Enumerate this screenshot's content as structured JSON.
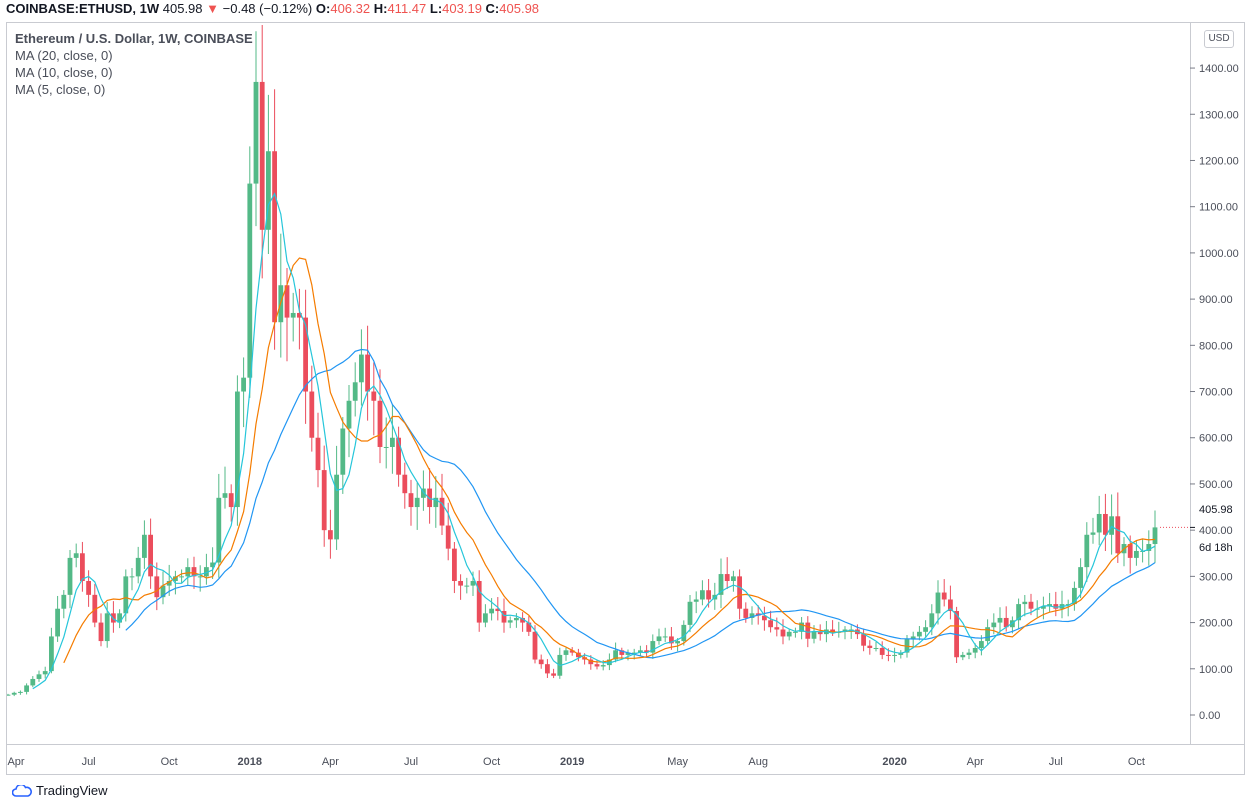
{
  "header": {
    "symbol": "COINBASE:ETHUSD, 1W",
    "last": "405.98",
    "change": "−0.48 (−0.12%)",
    "o_label": "O:",
    "o": "406.32",
    "h_label": "H:",
    "h": "411.47",
    "l_label": "L:",
    "l": "403.19",
    "c_label": "C:",
    "c": "405.98"
  },
  "legend": {
    "title": "Ethereum / U.S. Dollar, 1W, COINBASE",
    "ma20": "MA (20, close, 0)",
    "ma10": "MA (10, close, 0)",
    "ma5": "MA (5, close, 0)"
  },
  "currency_button": "USD",
  "price_label": "405.98",
  "countdown": "6d 18h",
  "brand": "TradingView",
  "colors": {
    "up": "#53b987",
    "down": "#eb4d5c",
    "ma20": "#2196f3",
    "ma10": "#f57c00",
    "ma5": "#26c6da"
  },
  "chart_data": {
    "type": "candlestick",
    "interval": "1W",
    "ylim": [
      -50,
      1450
    ],
    "yticks": [
      "0.00",
      "100.00",
      "200.00",
      "300.00",
      "400.00",
      "500.00",
      "600.00",
      "700.00",
      "800.00",
      "900.00",
      "1000.00",
      "1100.00",
      "1200.00",
      "1300.00",
      "1400.00"
    ],
    "xticks": [
      {
        "label": "Apr",
        "week": -1
      },
      {
        "label": "Jul",
        "week": 13
      },
      {
        "label": "Oct",
        "week": 26
      },
      {
        "label": "2018",
        "week": 39
      },
      {
        "label": "Apr",
        "week": 52
      },
      {
        "label": "Jul",
        "week": 65
      },
      {
        "label": "Oct",
        "week": 78
      },
      {
        "label": "2019",
        "week": 91
      },
      {
        "label": "May",
        "week": 108
      },
      {
        "label": "Aug",
        "week": 121
      },
      {
        "label": "2020",
        "week": 143
      },
      {
        "label": "Apr",
        "week": 156
      },
      {
        "label": "Jul",
        "week": 169
      },
      {
        "label": "Oct",
        "week": 182
      }
    ],
    "first_open": 44,
    "closes": [
      44,
      48,
      50,
      64,
      78,
      88,
      95,
      170,
      230,
      260,
      340,
      350,
      290,
      260,
      200,
      160,
      220,
      200,
      220,
      300,
      300,
      340,
      390,
      300,
      255,
      280,
      290,
      300,
      300,
      320,
      300,
      300,
      320,
      330,
      470,
      480,
      450,
      700,
      730,
      1150,
      1370,
      1050,
      1220,
      850,
      930,
      860,
      870,
      860,
      700,
      600,
      530,
      400,
      380,
      520,
      620,
      680,
      720,
      780,
      700,
      680,
      580,
      580,
      600,
      520,
      480,
      450,
      470,
      490,
      450,
      470,
      410,
      360,
      290,
      280,
      280,
      290,
      200,
      220,
      230,
      225,
      200,
      205,
      210,
      200,
      180,
      120,
      110,
      90,
      85,
      130,
      140,
      135,
      125,
      120,
      110,
      105,
      108,
      120,
      140,
      130,
      135,
      135,
      140,
      135,
      160,
      170,
      170,
      155,
      160,
      195,
      245,
      250,
      270,
      250,
      260,
      305,
      290,
      300,
      230,
      210,
      220,
      215,
      205,
      190,
      185,
      170,
      180,
      180,
      200,
      165,
      180,
      175,
      185,
      180,
      180,
      185,
      185,
      175,
      150,
      145,
      145,
      130,
      128,
      130,
      135,
      165,
      170,
      180,
      190,
      220,
      265,
      250,
      225,
      125,
      130,
      135,
      145,
      160,
      190,
      200,
      210,
      190,
      205,
      240,
      245,
      230,
      230,
      235,
      240,
      230,
      240,
      240,
      275,
      320,
      390,
      395,
      435,
      390,
      430,
      350,
      370,
      340,
      355,
      355,
      370,
      405.98
    ],
    "moving_averages": [
      {
        "name": "MA (20, close, 0)",
        "period": 20
      },
      {
        "name": "MA (10, close, 0)",
        "period": 10
      },
      {
        "name": "MA (5, close, 0)",
        "period": 5
      }
    ]
  }
}
